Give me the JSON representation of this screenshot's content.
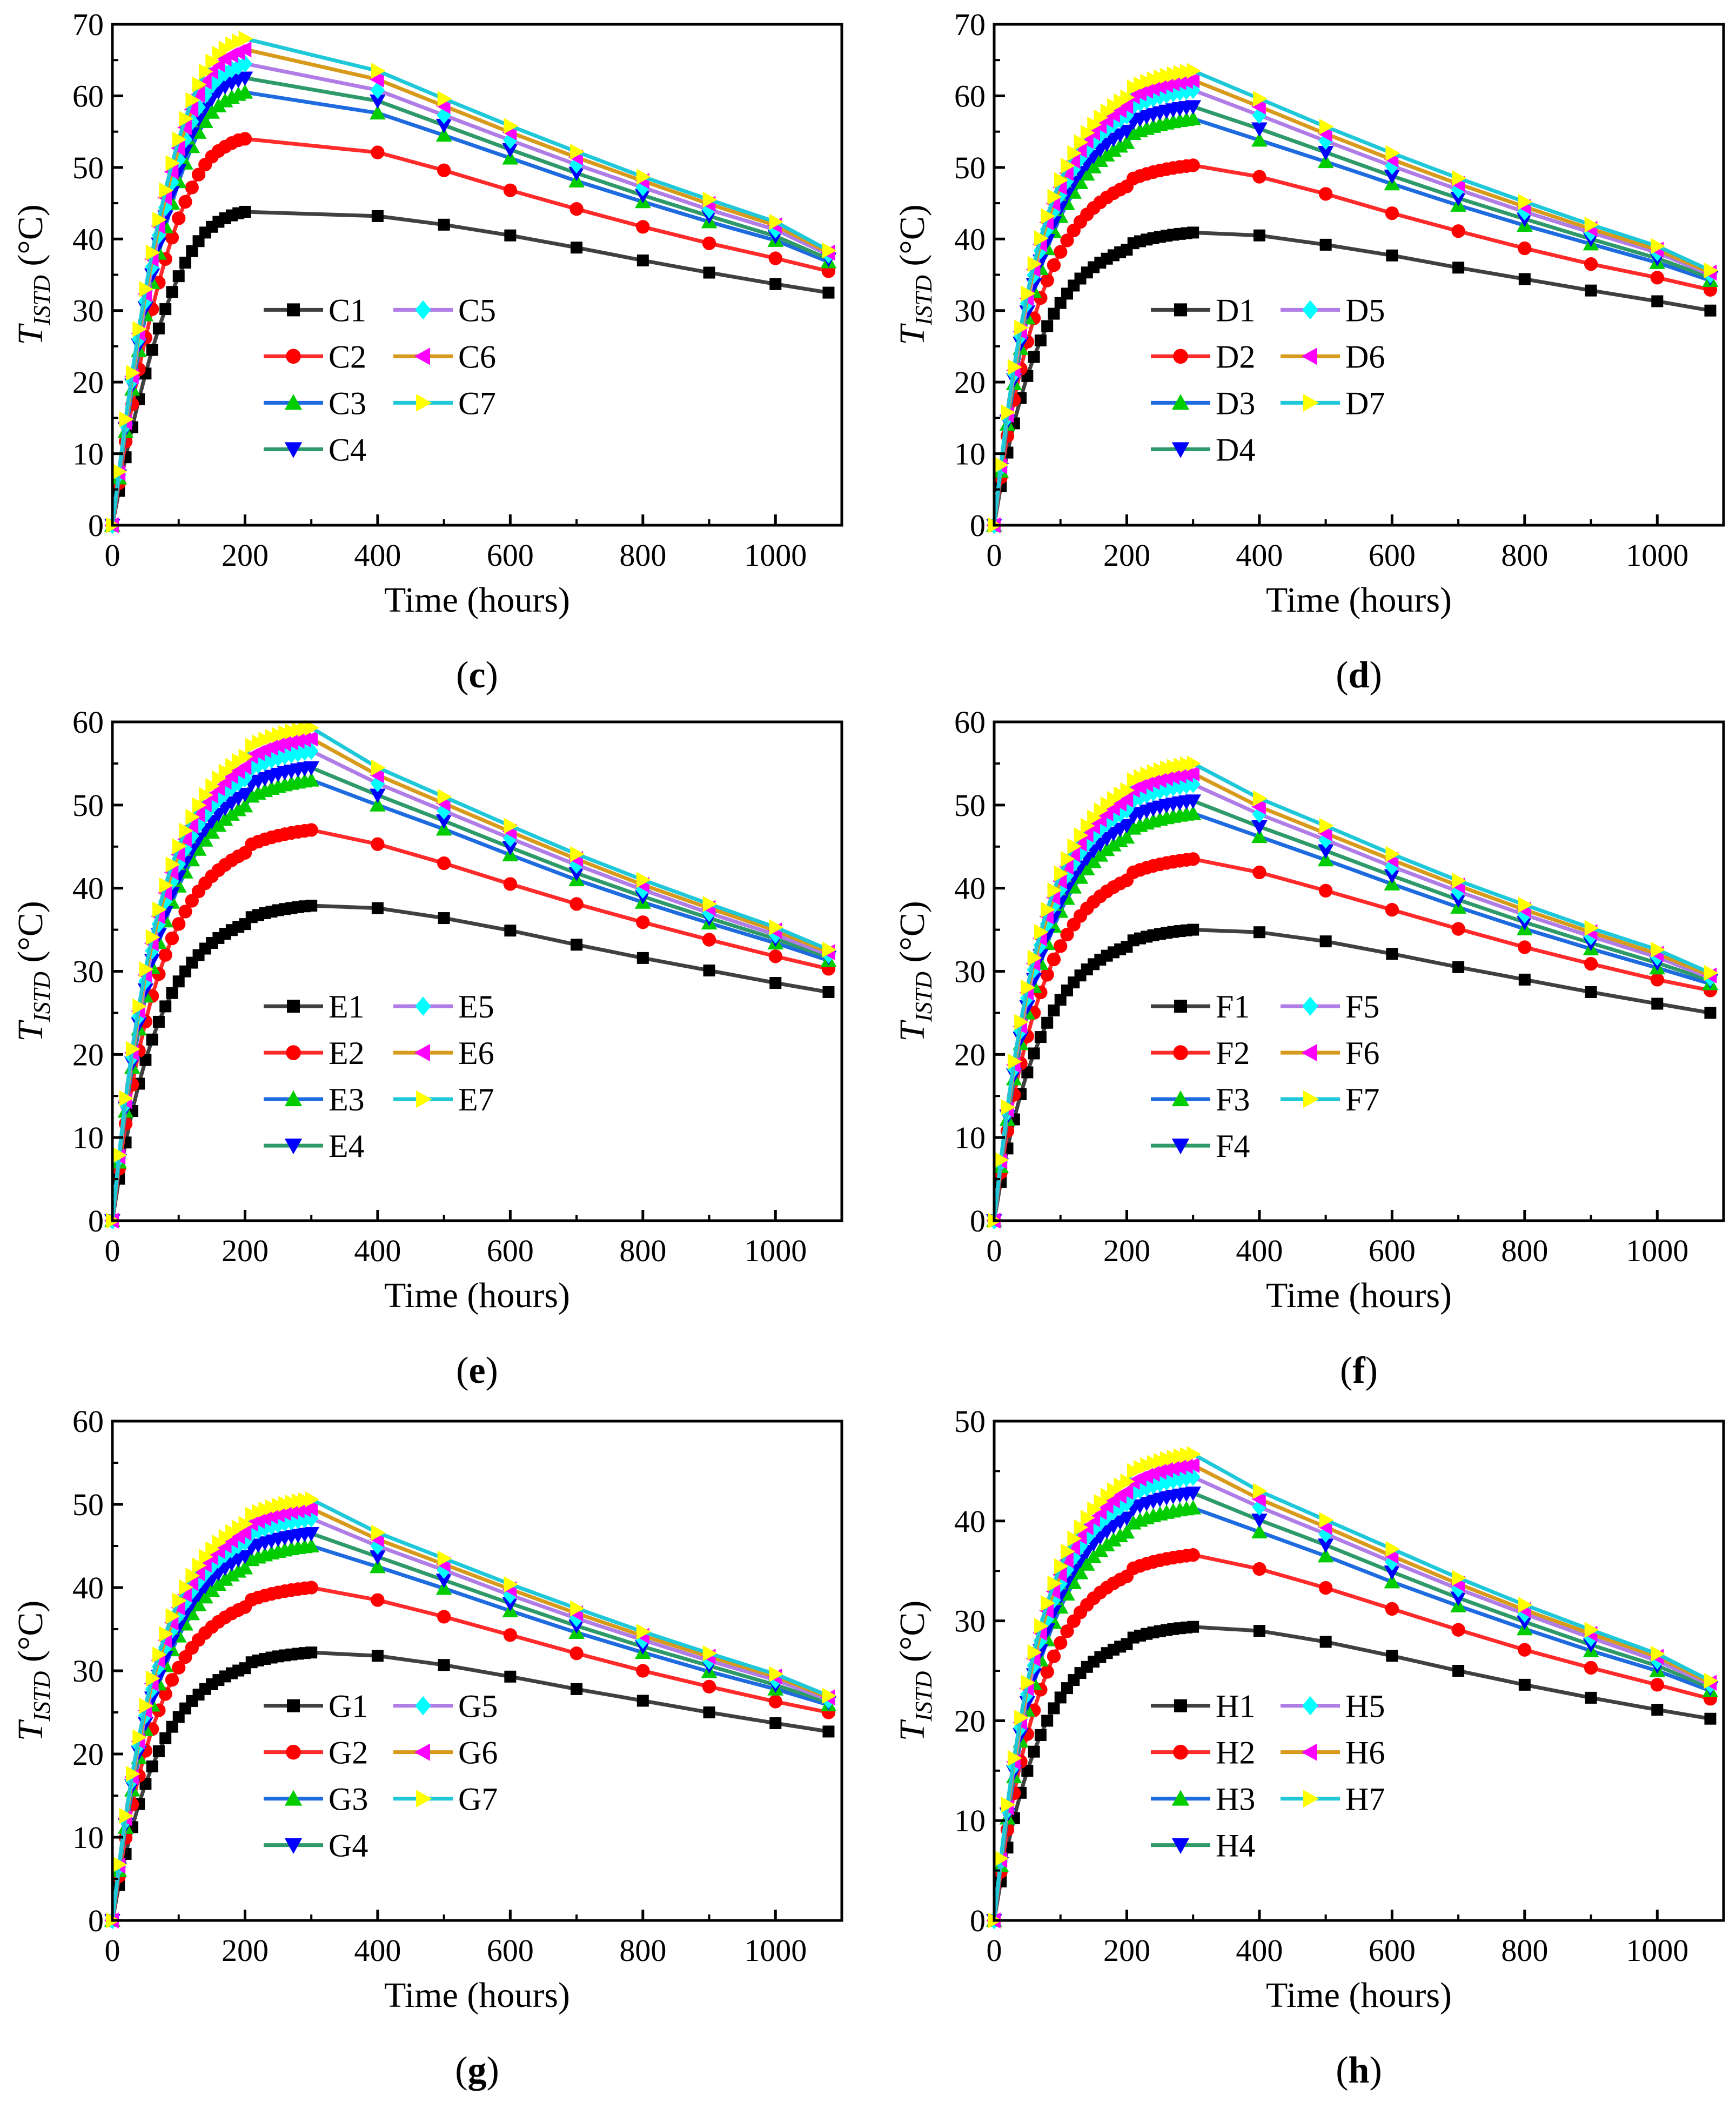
{
  "figure": {
    "colors": {
      "s1": "#000000",
      "s2": "#ff0000",
      "s3": "#00cc00",
      "s4": "#0000ff",
      "s5": "#00ffff",
      "s6": "#ff00ff",
      "s7": "#ffff00",
      "line1": "#404040",
      "line2": "#ff2a2a",
      "line3": "#1e6be0",
      "line4": "#2e9a6a",
      "line5": "#b07ce6",
      "line6": "#d89a1a",
      "line7": "#1ec8d8"
    },
    "markers": [
      "square-icon",
      "circle-icon",
      "triangle-up-icon",
      "triangle-down-icon",
      "diamond-icon",
      "triangle-left-icon",
      "triangle-right-icon"
    ]
  },
  "chart_data": [
    {
      "id": "c",
      "panel_label": "c",
      "type": "line",
      "xlabel": "Time (hours)",
      "ylabel_main": "T",
      "ylabel_sub": "ISTD",
      "ylabel_unit": " (°C)",
      "xlim": [
        0,
        1100
      ],
      "ylim": [
        0,
        70
      ],
      "xticks": [
        0,
        200,
        400,
        600,
        800,
        1000
      ],
      "yticks": [
        0,
        10,
        20,
        30,
        40,
        50,
        60,
        70
      ],
      "peaks": [
        43.8,
        54.0,
        60.5,
        62.5,
        64.5,
        66.5,
        68.0
      ],
      "finals": [
        32.5,
        35.5,
        36.8,
        37.2,
        37.8,
        38.1,
        38.4
      ],
      "series": [
        {
          "name": "C1",
          "values": [
            0,
            4.8,
            9.5,
            13.7,
            17.6,
            21.2,
            24.5,
            27.5,
            30.2,
            32.6,
            34.8,
            36.7,
            38.3,
            39.7,
            40.9,
            41.7,
            42.4,
            42.9,
            43.3,
            43.6,
            43.8,
            43.2,
            42.0,
            40.5,
            38.8,
            37.0,
            35.3,
            33.7,
            32.5
          ]
        },
        {
          "name": "C2",
          "values": [
            0,
            5.9,
            11.7,
            16.9,
            21.8,
            26.2,
            30.2,
            33.9,
            37.2,
            40.2,
            42.9,
            45.2,
            47.2,
            49.0,
            50.4,
            51.5,
            52.3,
            52.9,
            53.4,
            53.8,
            54.0,
            52.1,
            49.6,
            46.8,
            44.2,
            41.7,
            39.4,
            37.3,
            35.5
          ]
        },
        {
          "name": "C3",
          "values": [
            0,
            6.6,
            13.1,
            19.0,
            24.4,
            29.4,
            33.9,
            38.0,
            41.7,
            45.0,
            48.0,
            50.6,
            52.9,
            54.9,
            56.4,
            57.7,
            58.6,
            59.3,
            59.8,
            60.2,
            60.5,
            57.6,
            54.5,
            51.3,
            48.1,
            45.2,
            42.4,
            39.8,
            36.8
          ]
        },
        {
          "name": "C4",
          "values": [
            0,
            6.9,
            13.5,
            19.6,
            25.2,
            30.4,
            35.0,
            39.3,
            43.1,
            46.5,
            49.6,
            52.3,
            54.7,
            56.7,
            58.3,
            59.6,
            60.6,
            61.3,
            61.8,
            62.2,
            62.5,
            59.3,
            55.9,
            52.5,
            49.2,
            46.1,
            43.2,
            40.4,
            37.2
          ]
        },
        {
          "name": "C5",
          "values": [
            0,
            7.1,
            14.0,
            20.2,
            26.0,
            31.3,
            36.1,
            40.5,
            44.4,
            47.9,
            51.1,
            53.9,
            56.4,
            58.4,
            60.1,
            61.5,
            62.5,
            63.2,
            63.7,
            64.1,
            64.5,
            60.8,
            57.3,
            53.8,
            50.4,
            47.2,
            44.1,
            41.3,
            37.8
          ]
        },
        {
          "name": "C6",
          "values": [
            0,
            7.3,
            14.4,
            20.8,
            26.8,
            32.3,
            37.2,
            41.8,
            45.8,
            49.4,
            52.7,
            55.6,
            58.1,
            60.2,
            62.0,
            63.4,
            64.4,
            65.2,
            65.7,
            66.1,
            66.5,
            62.3,
            58.6,
            54.9,
            51.4,
            48.1,
            44.9,
            41.9,
            38.1
          ]
        },
        {
          "name": "C7",
          "values": [
            0,
            7.5,
            14.8,
            21.3,
            27.4,
            33.0,
            38.1,
            42.7,
            46.8,
            50.6,
            53.9,
            56.8,
            59.4,
            61.6,
            63.4,
            64.8,
            65.9,
            66.6,
            67.2,
            67.6,
            68.0,
            63.5,
            59.6,
            55.8,
            52.2,
            48.7,
            45.5,
            42.4,
            38.4
          ]
        }
      ],
      "x": [
        0,
        10,
        20,
        30,
        40,
        50,
        60,
        70,
        80,
        90,
        100,
        110,
        120,
        130,
        140,
        150,
        160,
        170,
        180,
        190,
        200,
        400,
        500,
        600,
        700,
        800,
        900,
        1000,
        1080
      ]
    },
    {
      "id": "d",
      "panel_label": "d",
      "type": "line",
      "xlabel": "Time (hours)",
      "ylabel_main": "T",
      "ylabel_sub": "ISTD",
      "ylabel_unit": " (°C)",
      "xlim": [
        0,
        1100
      ],
      "ylim": [
        0,
        70
      ],
      "xticks": [
        0,
        200,
        400,
        600,
        800,
        1000
      ],
      "yticks": [
        0,
        10,
        20,
        30,
        40,
        50,
        60,
        70
      ],
      "peaks": [
        40.9,
        50.3,
        56.8,
        58.5,
        60.8,
        62.2,
        63.5
      ],
      "finals": [
        30.0,
        32.9,
        34.2,
        34.6,
        35.0,
        35.3,
        35.6
      ],
      "series": [
        {
          "name": "D1",
          "values": [
            0,
            40.5,
            39.2,
            37.7,
            36.0,
            34.4,
            32.8,
            31.3,
            30.0
          ]
        },
        {
          "name": "D2",
          "values": [
            0,
            48.7,
            46.3,
            43.6,
            41.1,
            38.7,
            36.5,
            34.6,
            32.9
          ]
        },
        {
          "name": "D3",
          "values": [
            0,
            53.8,
            50.8,
            47.7,
            44.7,
            41.9,
            39.3,
            36.7,
            34.2
          ]
        },
        {
          "name": "D4",
          "values": [
            0,
            55.4,
            52.1,
            48.8,
            45.7,
            42.8,
            40.0,
            37.3,
            34.6
          ]
        },
        {
          "name": "D5",
          "values": [
            0,
            57.3,
            53.7,
            50.2,
            46.9,
            43.8,
            40.9,
            38.1,
            35.0
          ]
        },
        {
          "name": "D6",
          "values": [
            0,
            58.5,
            54.7,
            51.1,
            47.7,
            44.5,
            41.4,
            38.5,
            35.3
          ]
        },
        {
          "name": "D7",
          "values": [
            0,
            59.6,
            55.7,
            52.0,
            48.5,
            45.2,
            42.0,
            39.0,
            35.6
          ]
        }
      ],
      "x": [
        0,
        400,
        500,
        600,
        700,
        800,
        900,
        1000,
        1080
      ]
    },
    {
      "id": "e",
      "panel_label": "e",
      "type": "line",
      "xlabel": "Time (hours)",
      "ylabel_main": "T",
      "ylabel_sub": "ISTD",
      "ylabel_unit": " (°C)",
      "xlim": [
        0,
        1100
      ],
      "ylim": [
        0,
        60
      ],
      "xticks": [
        0,
        200,
        400,
        600,
        800,
        1000
      ],
      "yticks": [
        0,
        10,
        20,
        30,
        40,
        50,
        60
      ],
      "peaks": [
        37.9,
        47.0,
        53.0,
        54.5,
        56.5,
        58.0,
        59.3
      ],
      "finals": [
        27.5,
        30.3,
        31.3,
        31.7,
        32.0,
        32.3,
        32.6
      ],
      "series": [
        {
          "name": "E1",
          "values": [
            0,
            37.6,
            36.4,
            34.9,
            33.2,
            31.6,
            30.1,
            28.6,
            27.5
          ]
        },
        {
          "name": "E2",
          "values": [
            0,
            45.3,
            43.0,
            40.5,
            38.1,
            35.9,
            33.8,
            31.8,
            30.3
          ]
        },
        {
          "name": "E3",
          "values": [
            0,
            50.0,
            47.1,
            44.0,
            41.0,
            38.3,
            35.8,
            33.4,
            31.3
          ]
        },
        {
          "name": "E4",
          "values": [
            0,
            51.2,
            48.1,
            44.9,
            41.8,
            39.0,
            36.4,
            33.9,
            31.7
          ]
        },
        {
          "name": "E5",
          "values": [
            0,
            52.6,
            49.3,
            46.0,
            42.8,
            39.8,
            37.0,
            34.4,
            32.0
          ]
        },
        {
          "name": "E6",
          "values": [
            0,
            53.6,
            50.2,
            46.8,
            43.5,
            40.4,
            37.6,
            34.9,
            32.3
          ]
        },
        {
          "name": "E7",
          "values": [
            0,
            54.5,
            51.0,
            47.5,
            44.1,
            41.0,
            38.1,
            35.3,
            32.6
          ]
        }
      ],
      "x": [
        0,
        400,
        500,
        600,
        700,
        800,
        900,
        1000,
        1080
      ]
    },
    {
      "id": "f",
      "panel_label": "f",
      "type": "line",
      "xlabel": "Time (hours)",
      "ylabel_main": "T",
      "ylabel_sub": "ISTD",
      "ylabel_unit": " (°C)",
      "xlim": [
        0,
        1100
      ],
      "ylim": [
        0,
        60
      ],
      "xticks": [
        0,
        200,
        400,
        600,
        800,
        1000
      ],
      "yticks": [
        0,
        10,
        20,
        30,
        40,
        50,
        60
      ],
      "peaks": [
        35.0,
        43.5,
        49.0,
        50.5,
        52.5,
        53.8,
        55.0
      ],
      "finals": [
        25.0,
        27.7,
        28.5,
        28.9,
        29.2,
        29.5,
        29.8
      ],
      "series": [
        {
          "name": "F1",
          "values": [
            0,
            34.7,
            33.6,
            32.1,
            30.5,
            29.0,
            27.5,
            26.1,
            25.0
          ]
        },
        {
          "name": "F2",
          "values": [
            0,
            41.9,
            39.7,
            37.4,
            35.1,
            32.9,
            30.9,
            29.0,
            27.7
          ]
        },
        {
          "name": "F3",
          "values": [
            0,
            46.2,
            43.4,
            40.5,
            37.7,
            35.1,
            32.7,
            30.4,
            28.5
          ]
        },
        {
          "name": "F4",
          "values": [
            0,
            47.4,
            44.5,
            41.5,
            38.6,
            35.9,
            33.4,
            31.0,
            28.9
          ]
        },
        {
          "name": "F5",
          "values": [
            0,
            48.9,
            45.8,
            42.6,
            39.6,
            36.8,
            34.2,
            31.7,
            29.2
          ]
        },
        {
          "name": "F6",
          "values": [
            0,
            49.8,
            46.6,
            43.4,
            40.3,
            37.4,
            34.7,
            32.1,
            29.5
          ]
        },
        {
          "name": "F7",
          "values": [
            0,
            50.8,
            47.5,
            44.1,
            40.9,
            38.0,
            35.2,
            32.6,
            29.8
          ]
        }
      ],
      "x": [
        0,
        400,
        500,
        600,
        700,
        800,
        900,
        1000,
        1080
      ]
    },
    {
      "id": "g",
      "panel_label": "g",
      "type": "line",
      "xlabel": "Time (hours)",
      "ylabel_main": "T",
      "ylabel_sub": "ISTD",
      "ylabel_unit": " (°C)",
      "xlim": [
        0,
        1100
      ],
      "ylim": [
        0,
        60
      ],
      "xticks": [
        0,
        200,
        400,
        600,
        800,
        1000
      ],
      "yticks": [
        0,
        10,
        20,
        30,
        40,
        50,
        60
      ],
      "peaks": [
        32.2,
        40.0,
        45.0,
        46.5,
        48.3,
        49.5,
        50.6
      ],
      "finals": [
        22.7,
        25.0,
        25.9,
        26.2,
        26.5,
        26.8,
        27.0
      ],
      "series": [
        {
          "name": "G1",
          "values": [
            0,
            31.8,
            30.7,
            29.3,
            27.8,
            26.4,
            25.0,
            23.7,
            22.7
          ]
        },
        {
          "name": "G2",
          "values": [
            0,
            38.5,
            36.5,
            34.3,
            32.1,
            30.0,
            28.1,
            26.3,
            25.0
          ]
        },
        {
          "name": "G3",
          "values": [
            0,
            42.5,
            39.9,
            37.2,
            34.6,
            32.2,
            29.9,
            27.8,
            25.9
          ]
        },
        {
          "name": "G4",
          "values": [
            0,
            43.7,
            40.9,
            38.1,
            35.4,
            32.9,
            30.6,
            28.3,
            26.2
          ]
        },
        {
          "name": "G5",
          "values": [
            0,
            45.0,
            42.1,
            39.1,
            36.3,
            33.7,
            31.2,
            28.9,
            26.5
          ]
        },
        {
          "name": "G6",
          "values": [
            0,
            45.8,
            42.8,
            39.8,
            36.9,
            34.2,
            31.7,
            29.3,
            26.8
          ]
        },
        {
          "name": "G7",
          "values": [
            0,
            46.6,
            43.5,
            40.4,
            37.5,
            34.7,
            32.1,
            29.6,
            27.0
          ]
        }
      ],
      "x": [
        0,
        400,
        500,
        600,
        700,
        800,
        900,
        1000,
        1080
      ]
    },
    {
      "id": "h",
      "panel_label": "h",
      "type": "line",
      "xlabel": "Time (hours)",
      "ylabel_main": "T",
      "ylabel_sub": "ISTD",
      "ylabel_unit": " (°C)",
      "xlim": [
        0,
        1100
      ],
      "ylim": [
        0,
        50
      ],
      "xticks": [
        0,
        200,
        400,
        600,
        800,
        1000
      ],
      "yticks": [
        0,
        10,
        20,
        30,
        40,
        50
      ],
      "peaks": [
        29.4,
        36.6,
        41.3,
        42.8,
        44.4,
        45.6,
        46.7
      ],
      "finals": [
        20.2,
        22.2,
        23.0,
        23.3,
        23.6,
        23.8,
        24.0
      ],
      "series": [
        {
          "name": "H1",
          "values": [
            0,
            29.0,
            27.9,
            26.5,
            25.0,
            23.6,
            22.3,
            21.1,
            20.2
          ]
        },
        {
          "name": "H2",
          "values": [
            0,
            35.2,
            33.3,
            31.2,
            29.1,
            27.1,
            25.3,
            23.6,
            22.2
          ]
        },
        {
          "name": "H3",
          "values": [
            0,
            38.9,
            36.5,
            33.9,
            31.5,
            29.2,
            27.0,
            25.0,
            23.0
          ]
        },
        {
          "name": "H4",
          "values": [
            0,
            40.1,
            37.6,
            34.9,
            32.3,
            29.9,
            27.6,
            25.5,
            23.3
          ]
        },
        {
          "name": "H5",
          "values": [
            0,
            41.4,
            38.7,
            35.9,
            33.2,
            30.7,
            28.3,
            26.0,
            23.6
          ]
        },
        {
          "name": "H6",
          "values": [
            0,
            42.2,
            39.4,
            36.5,
            33.7,
            31.1,
            28.7,
            26.4,
            23.8
          ]
        },
        {
          "name": "H7",
          "values": [
            0,
            43.0,
            40.1,
            37.2,
            34.3,
            31.6,
            29.1,
            26.7,
            24.0
          ]
        }
      ],
      "x": [
        0,
        400,
        500,
        600,
        700,
        800,
        900,
        1000,
        1080
      ]
    }
  ]
}
